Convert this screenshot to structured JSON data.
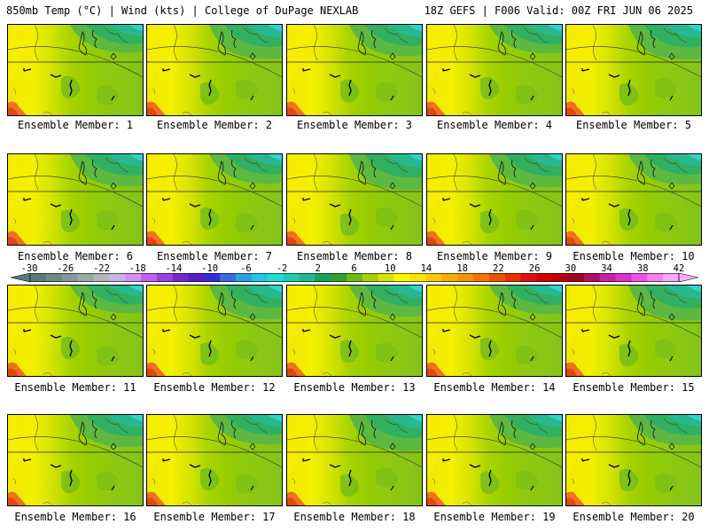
{
  "header": {
    "left": "850mb Temp (°C) | Wind (kts) | College of DuPage NEXLAB",
    "right": "18Z GEFS | F006 Valid: 00Z FRI JUN 06 2025"
  },
  "members": [
    "Ensemble Member: 1",
    "Ensemble Member: 2",
    "Ensemble Member: 3",
    "Ensemble Member: 4",
    "Ensemble Member: 5",
    "Ensemble Member: 6",
    "Ensemble Member: 7",
    "Ensemble Member: 8",
    "Ensemble Member: 9",
    "Ensemble Member: 10",
    "Ensemble Member: 11",
    "Ensemble Member: 12",
    "Ensemble Member: 13",
    "Ensemble Member: 14",
    "Ensemble Member: 15",
    "Ensemble Member: 16",
    "Ensemble Member: 17",
    "Ensemble Member: 18",
    "Ensemble Member: 19",
    "Ensemble Member: 20"
  ],
  "colorbar": {
    "tick_labels": [
      "-30",
      "-26",
      "-22",
      "-18",
      "-14",
      "-10",
      "-6",
      "-2",
      "2",
      "6",
      "10",
      "14",
      "18",
      "22",
      "26",
      "30",
      "34",
      "38",
      "42"
    ],
    "colors": [
      "#5a7a7a",
      "#6f8a8a",
      "#849a9a",
      "#9aaaaa",
      "#b0b8b8",
      "#c8b4e0",
      "#d98cf0",
      "#c060f0",
      "#9a40e0",
      "#7a28c8",
      "#5a1cc8",
      "#3030d8",
      "#3a6ae0",
      "#2aa0e8",
      "#20c8e8",
      "#20dcd4",
      "#20ccb0",
      "#20b890",
      "#18a060",
      "#32a030",
      "#70b818",
      "#a8d000",
      "#d8e400",
      "#fcf800",
      "#fce400",
      "#fcc800",
      "#fcac00",
      "#f89000",
      "#f47400",
      "#ee5400",
      "#e83000",
      "#e01010",
      "#d00000",
      "#b8000a",
      "#a00018",
      "#b01060",
      "#c820a0",
      "#dc30c8",
      "#ee50e8",
      "#f880f0",
      "#fca8f8"
    ]
  }
}
